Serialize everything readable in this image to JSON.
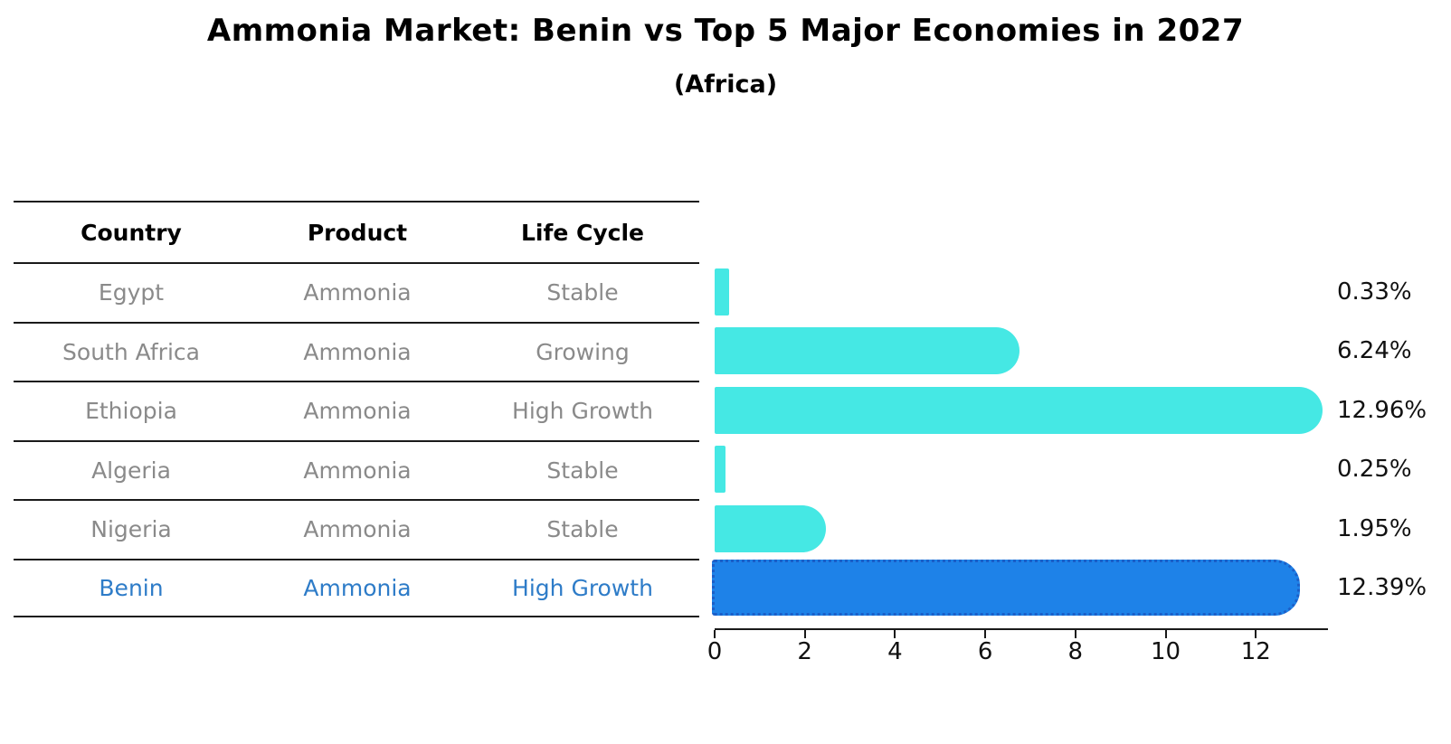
{
  "chart_data": {
    "type": "bar",
    "orientation": "horizontal",
    "title": "Ammonia Market: Benin vs Top 5 Major Economies in 2027",
    "subtitle": "(Africa)",
    "xlabel": "",
    "ylabel": "",
    "xlim": [
      0,
      13.6
    ],
    "xticks": [
      0,
      2,
      4,
      6,
      8,
      10,
      12
    ],
    "grid": false,
    "legend": "none",
    "categories": [
      "Egypt",
      "South Africa",
      "Ethiopia",
      "Algeria",
      "Nigeria",
      "Benin"
    ],
    "values": [
      0.33,
      6.24,
      12.96,
      0.25,
      1.95,
      12.39
    ],
    "value_labels": [
      "0.33%",
      "6.24%",
      "12.96%",
      "0.25%",
      "1.95%",
      "12.39%"
    ],
    "highlight_category": "Benin",
    "colors": {
      "bar": "#45E8E4",
      "highlight_bar": "#1E82E8",
      "highlight_bar_edge": "#1B5FC8",
      "row_text": "#8A8A8A",
      "highlight_text": "#2E7CC8",
      "axis_text": "#111111",
      "table_line": "#1A1A1A"
    }
  },
  "table": {
    "headers": [
      "Country",
      "Product",
      "Life Cycle"
    ],
    "rows": [
      {
        "country": "Egypt",
        "product": "Ammonia",
        "life_cycle": "Stable",
        "highlight": false
      },
      {
        "country": "South Africa",
        "product": "Ammonia",
        "life_cycle": "Growing",
        "highlight": false
      },
      {
        "country": "Ethiopia",
        "product": "Ammonia",
        "life_cycle": "High Growth",
        "highlight": false
      },
      {
        "country": "Algeria",
        "product": "Ammonia",
        "life_cycle": "Stable",
        "highlight": false
      },
      {
        "country": "Nigeria",
        "product": "Ammonia",
        "life_cycle": "Stable",
        "highlight": false
      },
      {
        "country": "Benin",
        "product": "Ammonia",
        "life_cycle": "High Growth",
        "highlight": true
      }
    ]
  }
}
